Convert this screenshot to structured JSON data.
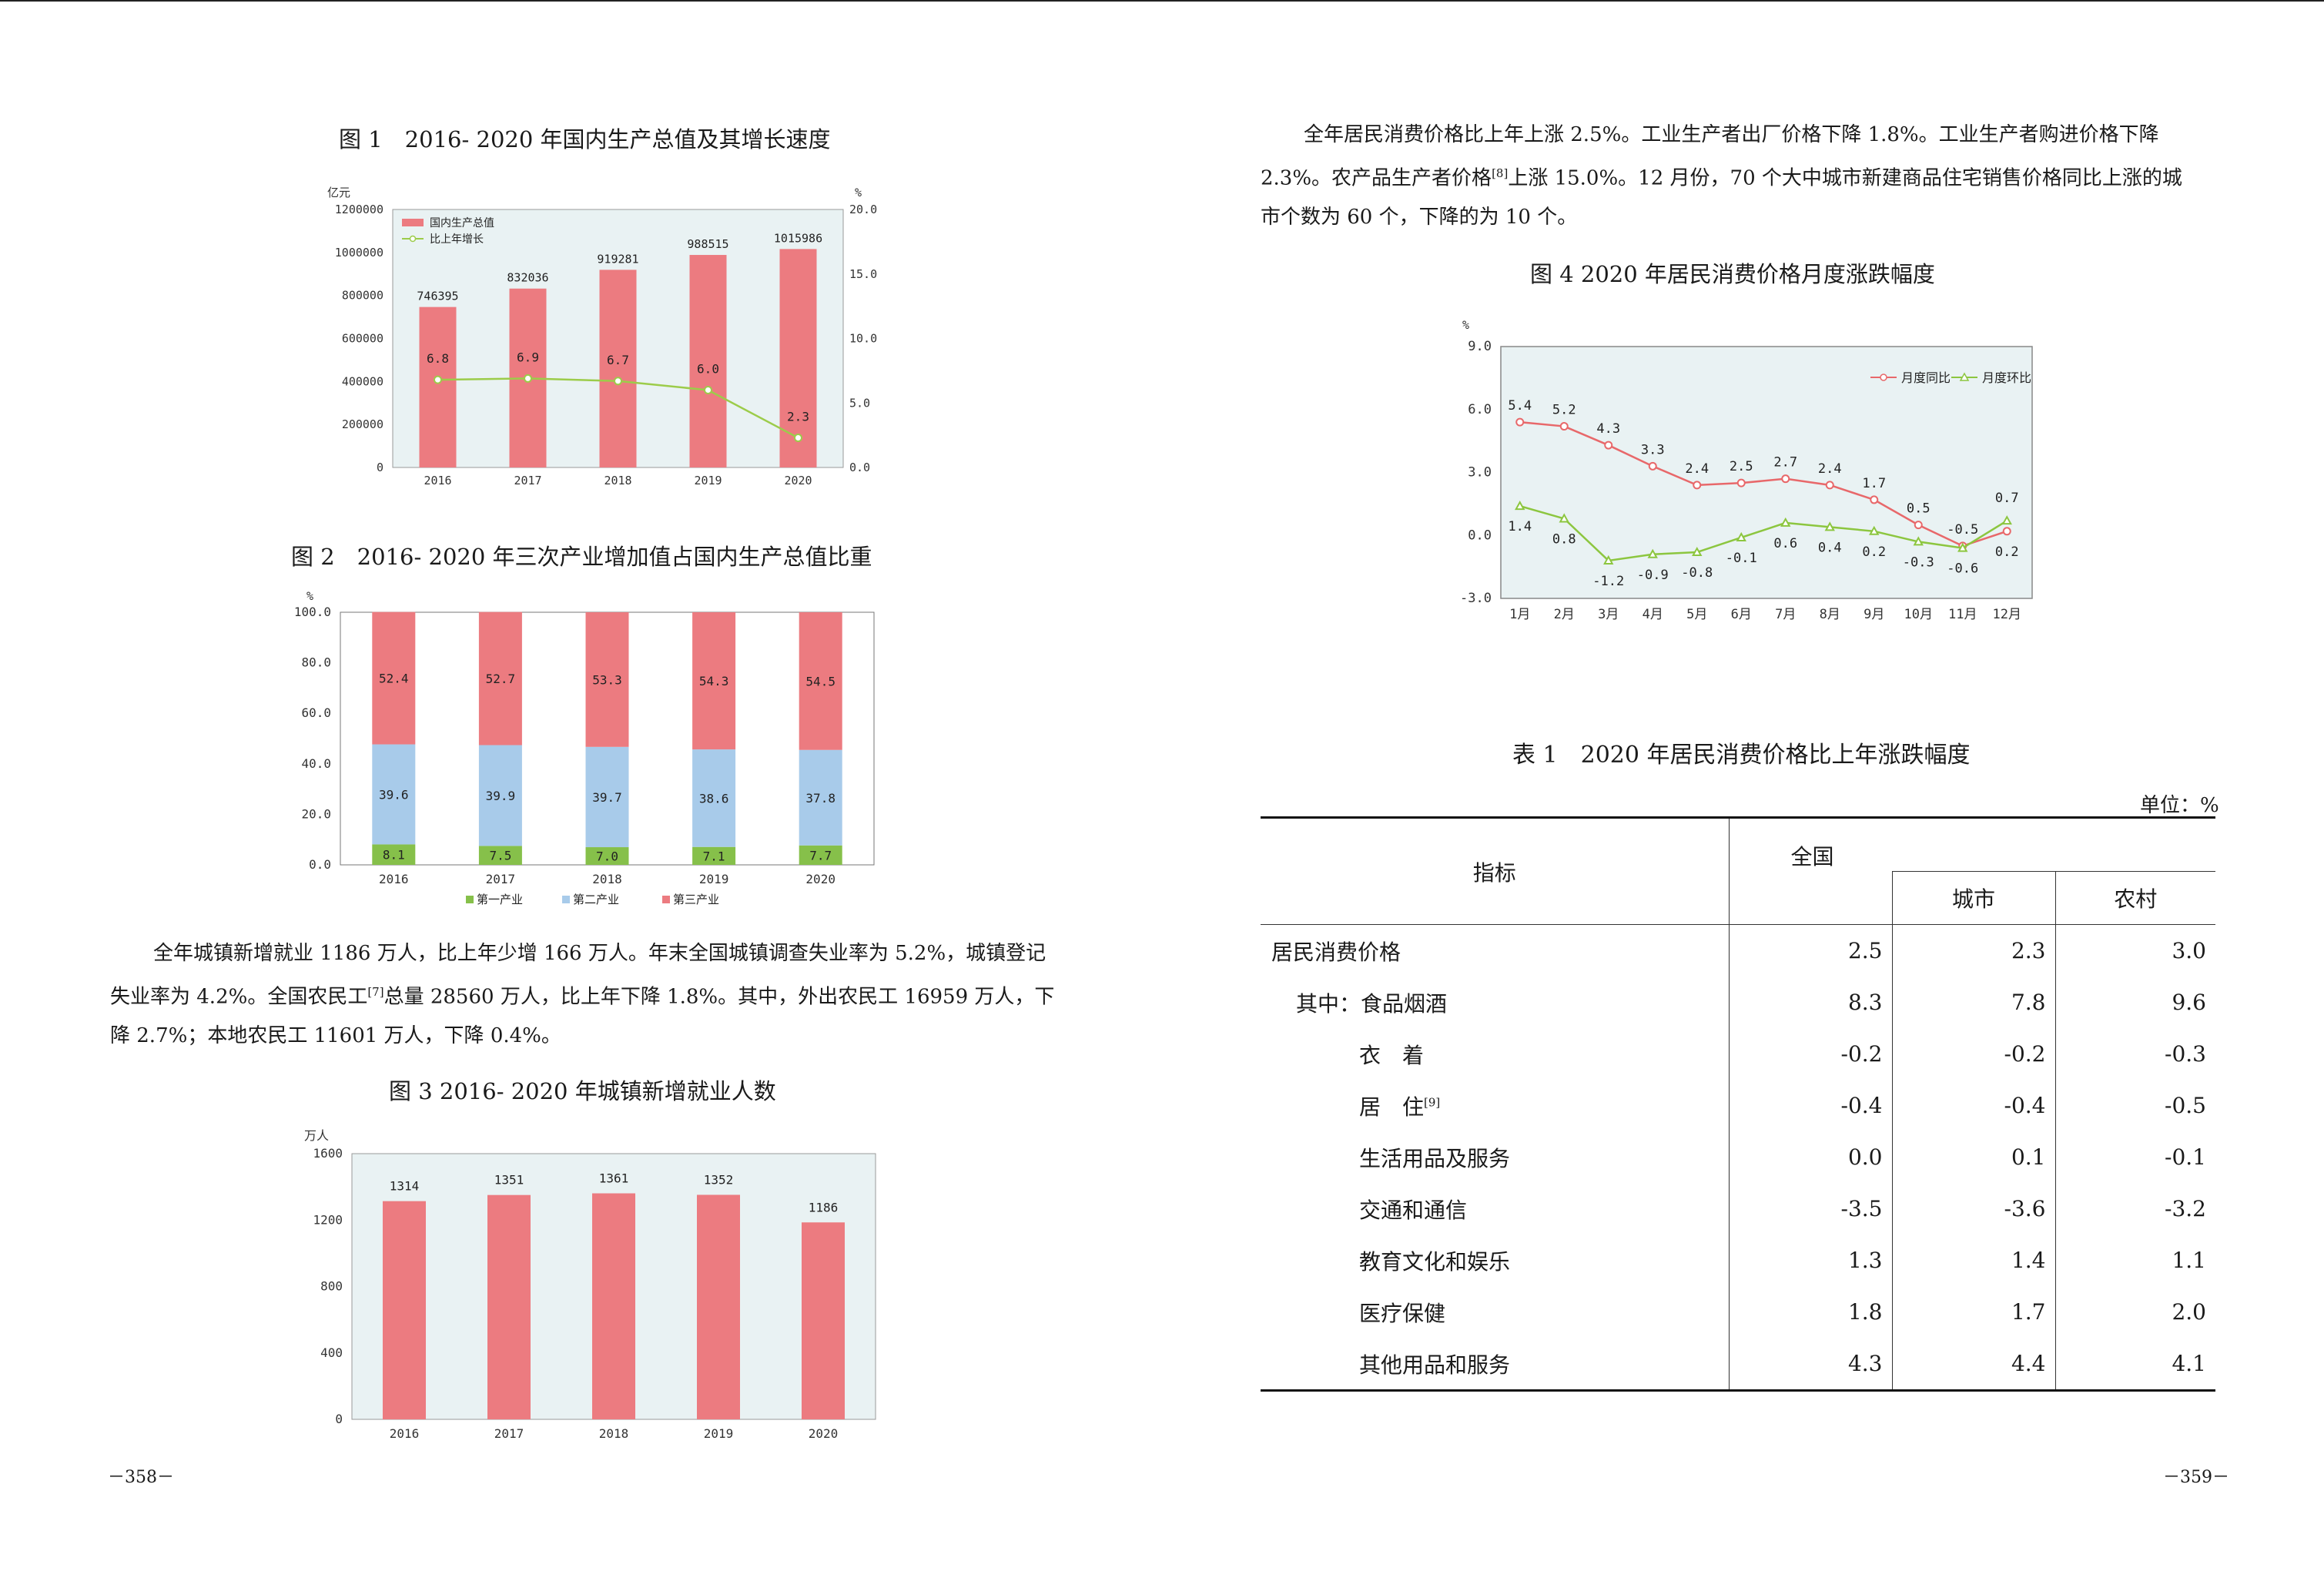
{
  "left_page": {
    "fig1": {
      "title": "图 1　2016- 2020 年国内生产总值及其增长速度",
      "chart_data": {
        "type": "bar",
        "categories": [
          "2016",
          "2017",
          "2018",
          "2019",
          "2020"
        ],
        "series": [
          {
            "name": "国内生产总值",
            "kind": "bar",
            "values": [
              746395,
              832036,
              919281,
              988515,
              1015986
            ],
            "labels": [
              "746395",
              "832036",
              "919281",
              "988515",
              "1015986"
            ]
          },
          {
            "name": "比上年增长",
            "kind": "line",
            "values": [
              6.8,
              6.9,
              6.7,
              6.0,
              2.3
            ],
            "labels": [
              "6.8",
              "6.9",
              "6.7",
              "6.0",
              "2.3"
            ]
          }
        ],
        "ylabel_left": "亿元",
        "ylabel_right": "%",
        "ylim_left": [
          0,
          1200000
        ],
        "ylim_right": [
          0,
          20
        ],
        "yticks_left": [
          "0",
          "200000",
          "400000",
          "600000",
          "800000",
          "1000000",
          "1200000"
        ],
        "yticks_right": [
          "0.0",
          "5.0",
          "10.0",
          "15.0",
          "20.0"
        ],
        "legend_position": "top-left",
        "colors": {
          "bar": "#ec7b80",
          "line": "#9ccc4a",
          "background": "#e9f2f3"
        }
      }
    },
    "fig2": {
      "title": "图 2　2016- 2020 年三次产业增加值占国内生产总值比重",
      "chart_data": {
        "type": "bar",
        "stacked": true,
        "categories": [
          "2016",
          "2017",
          "2018",
          "2019",
          "2020"
        ],
        "series": [
          {
            "name": "第一产业",
            "values": [
              8.1,
              7.5,
              7.0,
              7.1,
              7.7
            ],
            "labels": [
              "8.1",
              "7.5",
              "7.0",
              "7.1",
              "7.7"
            ],
            "color": "#86c04a"
          },
          {
            "name": "第二产业",
            "values": [
              39.6,
              39.9,
              39.7,
              38.6,
              37.8
            ],
            "labels": [
              "39.6",
              "39.9",
              "39.7",
              "38.6",
              "37.8"
            ],
            "color": "#a8cbea"
          },
          {
            "name": "第三产业",
            "values": [
              52.4,
              52.7,
              53.3,
              54.3,
              54.5
            ],
            "labels": [
              "52.4",
              "52.7",
              "53.3",
              "54.3",
              "54.5"
            ],
            "color": "#ec7b80"
          }
        ],
        "ylabel": "%",
        "ylim": [
          0,
          100
        ],
        "yticks": [
          "0.0",
          "20.0",
          "40.0",
          "60.0",
          "80.0",
          "100.0"
        ],
        "legend_position": "bottom"
      }
    },
    "paragraph": {
      "line1": "全年城镇新增就业 1186 万人，比上年少增 166 万人。年末全国城镇调查失业率为 5.2%，城镇登记",
      "line2a": "失业率为 4.2%。全国农民工",
      "line2_sup": "[7]",
      "line2b": "总量 28560 万人，比上年下降 1.8%。其中，外出农民工 16959 万人，下",
      "line3": "降 2.7%；本地农民工 11601 万人，下降 0.4%。"
    },
    "fig3": {
      "title": "图 3 2016- 2020 年城镇新增就业人数",
      "chart_data": {
        "type": "bar",
        "categories": [
          "2016",
          "2017",
          "2018",
          "2019",
          "2020"
        ],
        "values": [
          1314,
          1351,
          1361,
          1352,
          1186
        ],
        "labels": [
          "1314",
          "1351",
          "1361",
          "1352",
          "1186"
        ],
        "ylabel": "万人",
        "ylim": [
          0,
          1600
        ],
        "yticks": [
          "0",
          "400",
          "800",
          "1200",
          "1600"
        ],
        "colors": {
          "bar": "#ec7b80",
          "background": "#e9f2f3"
        }
      }
    },
    "page_number": "－358－"
  },
  "right_page": {
    "paragraph": {
      "line1": "全年居民消费价格比上年上涨 2.5%。工业生产者出厂价格下降 1.8%。工业生产者购进价格下降",
      "line2a": "2.3%。农产品生产者价格",
      "line2_sup": "[8]",
      "line2b": "上涨 15.0%。12 月份，70 个大中城市新建商品住宅销售价格同比上涨的城",
      "line3": "市个数为 60 个，下降的为 10 个。"
    },
    "fig4": {
      "title": "图 4 2020 年居民消费价格月度涨跌幅度",
      "chart_data": {
        "type": "line",
        "categories": [
          "1月",
          "2月",
          "3月",
          "4月",
          "5月",
          "6月",
          "7月",
          "8月",
          "9月",
          "10月",
          "11月",
          "12月"
        ],
        "series": [
          {
            "name": "月度同比",
            "values": [
              5.4,
              5.2,
              4.3,
              3.3,
              2.4,
              2.5,
              2.7,
              2.4,
              1.7,
              0.5,
              -0.5,
              0.2
            ],
            "labels": [
              "5.4",
              "5.2",
              "4.3",
              "3.3",
              "2.4",
              "2.5",
              "2.7",
              "2.4",
              "1.7",
              "0.5",
              "-0.5",
              "0.2"
            ],
            "color": "#e8686a"
          },
          {
            "name": "月度环比",
            "values": [
              1.4,
              0.8,
              -1.2,
              -0.9,
              -0.8,
              -0.1,
              0.6,
              0.4,
              0.2,
              -0.3,
              -0.6,
              0.7
            ],
            "labels": [
              "1.4",
              "0.8",
              "-1.2",
              "-0.9",
              "-0.8",
              "-0.1",
              "0.6",
              "0.4",
              "0.2",
              "-0.3",
              "-0.6",
              "0.7"
            ],
            "color": "#8cc63f"
          }
        ],
        "ylabel": "%",
        "ylim": [
          -3,
          9
        ],
        "yticks": [
          "-3.0",
          "0.0",
          "3.0",
          "6.0",
          "9.0"
        ],
        "legend_position": "top-right",
        "background": "#e9f2f3"
      }
    },
    "table": {
      "title": "表 1　2020 年居民消费价格比上年涨跌幅度",
      "unit": "单位：%",
      "header": {
        "indicator": "指标",
        "national": "全国",
        "urban": "城市",
        "rural": "农村"
      },
      "rows": [
        {
          "name": "居民消费价格",
          "national": "2.5",
          "urban": "2.3",
          "rural": "3.0"
        },
        {
          "name": "其中：食品烟酒",
          "national": "8.3",
          "urban": "7.8",
          "rural": "9.6"
        },
        {
          "name": "衣　着",
          "national": "-0.2",
          "urban": "-0.2",
          "rural": "-0.3"
        },
        {
          "name": "居　住",
          "sup": "[9]",
          "national": "-0.4",
          "urban": "-0.4",
          "rural": "-0.5"
        },
        {
          "name": "生活用品及服务",
          "national": "0.0",
          "urban": "0.1",
          "rural": "-0.1"
        },
        {
          "name": "交通和通信",
          "national": "-3.5",
          "urban": "-3.6",
          "rural": "-3.2"
        },
        {
          "name": "教育文化和娱乐",
          "national": "1.3",
          "urban": "1.4",
          "rural": "1.1"
        },
        {
          "name": "医疗保健",
          "national": "1.8",
          "urban": "1.7",
          "rural": "2.0"
        },
        {
          "name": "其他用品和服务",
          "national": "4.3",
          "urban": "4.4",
          "rural": "4.1"
        }
      ]
    },
    "page_number": "－359－"
  }
}
